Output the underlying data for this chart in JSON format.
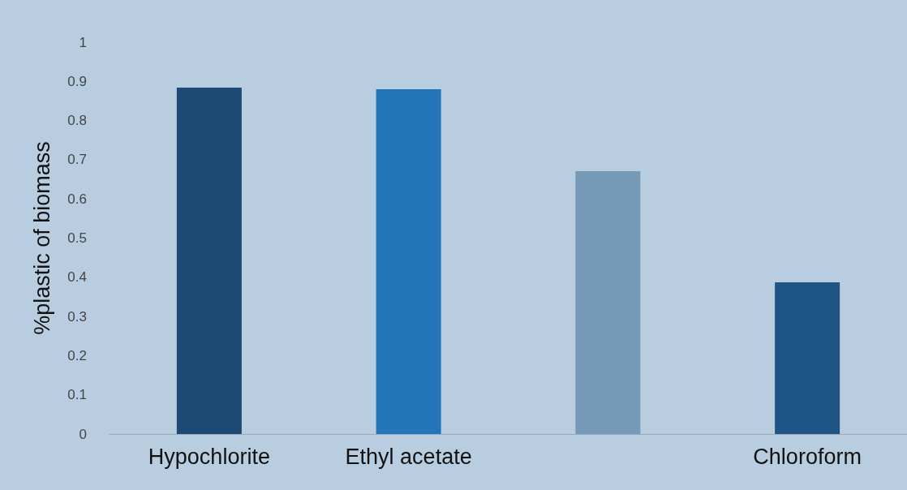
{
  "chart_data": {
    "type": "bar",
    "ylabel": "%plastic of biomass",
    "categories": [
      "Hypochlorite",
      "Ethyl acetate",
      null,
      "Chloroform"
    ],
    "values": [
      0.884,
      0.88,
      0.671,
      0.387
    ],
    "colors": [
      "#1c4a75",
      "#2474b8",
      "#7799b8",
      "#1f5585"
    ],
    "ylim": [
      0,
      1
    ],
    "yticks": [
      0,
      0.1,
      0.2,
      0.3,
      0.4,
      0.5,
      0.6,
      0.7,
      0.8,
      0.9,
      1
    ],
    "grid": false
  }
}
